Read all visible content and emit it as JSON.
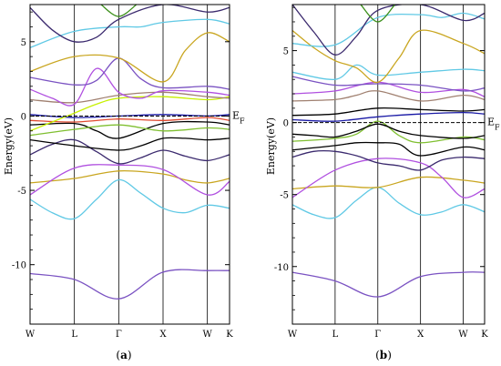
{
  "chart_data": [
    {
      "type": "line",
      "caption": "(a)",
      "ylabel": "Energy(eV)",
      "fermi_label": "E",
      "fermi_sub": "F",
      "ylim": [
        -14,
        7.5
      ],
      "yticks": [
        5,
        0,
        -5,
        -10
      ],
      "ytick_labels": [
        "5",
        "0",
        "-5",
        "-10"
      ],
      "kpoints": [
        0,
        1,
        2,
        3,
        4,
        4.5
      ],
      "klabels": [
        "W",
        "L",
        "Γ",
        "X",
        "W",
        "K"
      ],
      "series": [
        {
          "color": "#7a52c2",
          "x": [
            0,
            1,
            2,
            3,
            4,
            4.5
          ],
          "y": [
            -10.6,
            -11.0,
            -12.3,
            -10.5,
            -10.4,
            -10.4
          ]
        },
        {
          "color": "#60c9e5",
          "x": [
            0,
            0.5,
            1,
            1.5,
            2,
            2.5,
            3,
            3.5,
            4,
            4.5
          ],
          "y": [
            -5.6,
            -6.5,
            -6.9,
            -5.6,
            -4.3,
            -5.2,
            -6.2,
            -6.5,
            -6.0,
            -6.2
          ]
        },
        {
          "color": "#c9a620",
          "x": [
            0,
            1,
            2,
            3,
            3.5,
            4,
            4.5
          ],
          "y": [
            -4.5,
            -4.2,
            -3.7,
            -3.9,
            -4.3,
            -4.5,
            -4.2
          ]
        },
        {
          "color": "#b050e0",
          "x": [
            0,
            1,
            2,
            3,
            4,
            4.5
          ],
          "y": [
            -5.3,
            -3.5,
            -3.3,
            -3.6,
            -5.3,
            -4.4
          ]
        },
        {
          "color": "#3b2a6e",
          "x": [
            0,
            0.5,
            1,
            1.5,
            2,
            2.5,
            3,
            3.5,
            4,
            4.5
          ],
          "y": [
            -2.6,
            -1.9,
            -1.6,
            -2.4,
            -3.2,
            -2.8,
            -2.3,
            -2.7,
            -3.0,
            -2.6
          ]
        },
        {
          "color": "#000000",
          "x": [
            0,
            1,
            2,
            2.5,
            3,
            3.5,
            4,
            4.5
          ],
          "y": [
            -1.6,
            -2.0,
            -2.3,
            -2.0,
            -1.5,
            -1.5,
            -1.6,
            -1.5
          ]
        },
        {
          "color": "#000000",
          "x": [
            0,
            1,
            1.5,
            2,
            3,
            4,
            4.5
          ],
          "y": [
            -0.6,
            -0.5,
            -1.0,
            -1.5,
            -0.5,
            -0.4,
            -0.6
          ]
        },
        {
          "color": "#e04a30",
          "x": [
            0,
            1,
            2,
            3,
            4,
            4.5
          ],
          "y": [
            -0.3,
            -0.4,
            -0.2,
            -0.3,
            -0.1,
            -0.3
          ]
        },
        {
          "color": "#1a1aa6",
          "x": [
            0,
            1,
            2,
            3,
            4,
            4.5
          ],
          "y": [
            0.1,
            -0.1,
            0.0,
            0.1,
            0.0,
            0.1
          ]
        },
        {
          "color": "#c7f000",
          "x": [
            0,
            0.5,
            1,
            1.5,
            2,
            3,
            4,
            4.5
          ],
          "y": [
            -1.0,
            -0.4,
            0.2,
            0.8,
            1.2,
            1.3,
            1.1,
            1.3
          ]
        },
        {
          "color": "#7fbf30",
          "x": [
            0,
            1,
            2,
            3,
            4,
            4.5
          ],
          "y": [
            -1.3,
            -0.9,
            -0.6,
            -1.0,
            -0.8,
            -0.9
          ]
        },
        {
          "color": "#a08070",
          "x": [
            0,
            1,
            2,
            3,
            4,
            4.5
          ],
          "y": [
            1.1,
            0.9,
            1.4,
            1.6,
            1.3,
            1.2
          ]
        },
        {
          "color": "#b050e0",
          "x": [
            0,
            0.5,
            1,
            1.5,
            2,
            2.5,
            3,
            4,
            4.5
          ],
          "y": [
            1.8,
            1.2,
            0.8,
            3.2,
            1.6,
            1.2,
            1.7,
            1.6,
            1.4
          ]
        },
        {
          "color": "#7a52c2",
          "x": [
            0,
            1,
            1.5,
            2,
            2.5,
            3,
            4,
            4.5
          ],
          "y": [
            2.6,
            2.1,
            2.4,
            3.9,
            2.5,
            1.9,
            2.0,
            1.8
          ]
        },
        {
          "color": "#c9a620",
          "x": [
            0,
            1,
            2,
            3,
            3.5,
            4,
            4.5
          ],
          "y": [
            3.0,
            4.0,
            3.9,
            2.3,
            4.4,
            5.6,
            5.0
          ]
        },
        {
          "color": "#60c9e5",
          "x": [
            0,
            1,
            2,
            2.5,
            3,
            4,
            4.5
          ],
          "y": [
            4.6,
            5.7,
            6.0,
            6.0,
            6.3,
            6.5,
            6.2
          ]
        },
        {
          "color": "#3b2a6e",
          "x": [
            0,
            0.5,
            1,
            1.5,
            2,
            3,
            4,
            4.5
          ],
          "y": [
            7.3,
            5.8,
            5.0,
            5.3,
            6.5,
            7.5,
            7.0,
            7.3
          ]
        },
        {
          "color": "#3b8f1a",
          "x": [
            1.6,
            2,
            2.4
          ],
          "y": [
            7.5,
            6.7,
            7.5
          ]
        }
      ]
    },
    {
      "type": "line",
      "caption": "(b)",
      "ylabel": "Energy(eV)",
      "fermi_label": "E",
      "fermi_sub": "F",
      "ylim": [
        -14,
        8.2
      ],
      "yticks": [
        5,
        0,
        -5,
        -10
      ],
      "ytick_labels": [
        "5",
        "0",
        "-5",
        "-10"
      ],
      "kpoints": [
        0,
        1,
        2,
        3,
        4,
        4.5
      ],
      "klabels": [
        "W",
        "L",
        "Γ",
        "X",
        "W",
        "K"
      ],
      "series": [
        {
          "color": "#7a52c2",
          "x": [
            0,
            1,
            2,
            3,
            4,
            4.5
          ],
          "y": [
            -10.4,
            -11.0,
            -12.1,
            -10.7,
            -10.4,
            -10.4
          ]
        },
        {
          "color": "#60c9e5",
          "x": [
            0,
            0.5,
            1,
            1.5,
            2,
            2.5,
            3,
            3.5,
            4,
            4.5
          ],
          "y": [
            -5.7,
            -6.4,
            -6.6,
            -5.4,
            -4.5,
            -5.6,
            -6.4,
            -6.2,
            -5.7,
            -6.2
          ]
        },
        {
          "color": "#c9a620",
          "x": [
            0,
            1,
            2,
            3,
            4,
            4.5
          ],
          "y": [
            -4.6,
            -4.4,
            -4.5,
            -3.8,
            -4.0,
            -4.2
          ]
        },
        {
          "color": "#b050e0",
          "x": [
            0,
            1,
            2,
            3,
            3.5,
            4,
            4.5
          ],
          "y": [
            -5.2,
            -3.3,
            -2.5,
            -2.8,
            -3.8,
            -5.2,
            -4.6
          ]
        },
        {
          "color": "#3b2a6e",
          "x": [
            0,
            0.5,
            1,
            1.5,
            2,
            2.5,
            3,
            3.5,
            4,
            4.5
          ],
          "y": [
            -2.4,
            -2.0,
            -2.0,
            -2.3,
            -2.8,
            -3.0,
            -3.3,
            -2.6,
            -2.4,
            -2.5
          ]
        },
        {
          "color": "#000000",
          "x": [
            0,
            1,
            1.5,
            2,
            2.5,
            3,
            4,
            4.5
          ],
          "y": [
            -1.9,
            -1.6,
            -1.4,
            -1.4,
            -1.5,
            -2.3,
            -1.7,
            -1.9
          ]
        },
        {
          "color": "#7fbf30",
          "x": [
            0,
            1,
            1.5,
            2,
            2.5,
            3,
            4,
            4.5
          ],
          "y": [
            -1.3,
            -1.1,
            -0.8,
            0.1,
            -0.9,
            -1.4,
            -1.0,
            -1.2
          ]
        },
        {
          "color": "#000000",
          "x": [
            0,
            0.5,
            1,
            1.5,
            2,
            2.5,
            3,
            4,
            4.5
          ],
          "y": [
            -0.8,
            -0.9,
            -1.0,
            -0.6,
            -0.1,
            -0.6,
            -0.9,
            -1.1,
            -0.9
          ]
        },
        {
          "color": "#1a1aa6",
          "x": [
            0,
            1,
            2,
            3,
            4,
            4.5
          ],
          "y": [
            0.2,
            0.1,
            0.4,
            0.6,
            0.7,
            0.6
          ]
        },
        {
          "color": "#000000",
          "x": [
            0,
            1,
            2,
            3,
            4,
            4.5
          ],
          "y": [
            0.5,
            0.6,
            1.0,
            0.9,
            0.8,
            0.9
          ]
        },
        {
          "color": "#a08070",
          "x": [
            0,
            1,
            1.5,
            2,
            3,
            4,
            4.5
          ],
          "y": [
            1.5,
            1.6,
            1.9,
            2.2,
            1.5,
            1.9,
            1.6
          ]
        },
        {
          "color": "#b050e0",
          "x": [
            0,
            1,
            2,
            3,
            4,
            4.5
          ],
          "y": [
            2.0,
            2.2,
            2.8,
            2.1,
            2.3,
            1.8
          ]
        },
        {
          "color": "#7a52c2",
          "x": [
            0,
            1,
            2,
            3,
            4,
            4.5
          ],
          "y": [
            3.2,
            2.6,
            2.7,
            2.6,
            2.2,
            2.4
          ]
        },
        {
          "color": "#60c9e5",
          "x": [
            0,
            1,
            1.5,
            2,
            3,
            4,
            4.5
          ],
          "y": [
            3.5,
            3.0,
            4.0,
            3.3,
            3.5,
            3.7,
            3.6
          ]
        },
        {
          "color": "#c9a620",
          "x": [
            0,
            0.5,
            1,
            1.5,
            2,
            2.5,
            3,
            4,
            4.5
          ],
          "y": [
            6.4,
            5.2,
            4.3,
            3.8,
            2.8,
            4.5,
            6.4,
            5.5,
            4.8
          ]
        },
        {
          "color": "#60c9e5",
          "x": [
            0,
            1,
            2,
            3,
            3.5,
            4,
            4.5
          ],
          "y": [
            5.5,
            5.4,
            7.3,
            7.5,
            7.3,
            7.6,
            7.2
          ]
        },
        {
          "color": "#3b2a6e",
          "x": [
            0,
            0.5,
            1,
            1.5,
            2,
            3,
            4,
            4.5
          ],
          "y": [
            8.2,
            6.3,
            4.7,
            6.0,
            7.8,
            8.2,
            7.1,
            7.6
          ]
        },
        {
          "color": "#3b8f1a",
          "x": [
            1.6,
            2,
            2.4
          ],
          "y": [
            8.2,
            7.0,
            8.2
          ]
        }
      ]
    }
  ]
}
